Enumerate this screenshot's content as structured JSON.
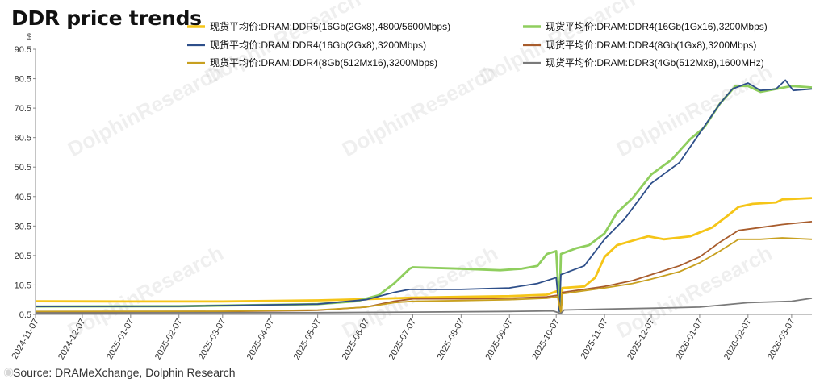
{
  "chart_data": {
    "type": "line",
    "title": "DDR price trends",
    "ylabel": "$",
    "source": "Source: DRAMeXchange,  Dolphin Research",
    "watermark": "DolphinResearch",
    "ylim": [
      0.5,
      90.5
    ],
    "yticks": [
      0.5,
      10.5,
      20.5,
      30.5,
      40.5,
      50.5,
      60.5,
      70.5,
      80.5,
      90.5
    ],
    "xticks": [
      "2024-11-07",
      "2024-12-07",
      "2025-01-07",
      "2025-02-07",
      "2025-03-07",
      "2025-04-07",
      "2025-05-07",
      "2025-06-07",
      "2025-07-07",
      "2025-08-07",
      "2025-09-07",
      "2025-10-07",
      "2025-11-07",
      "2025-12-07",
      "2026-01-07",
      "2026-02-07",
      "2026-03-07"
    ],
    "xlim": [
      "2024-11-07",
      "2026-03-20"
    ],
    "grid": false,
    "legend_position": "top",
    "series": [
      {
        "name": "现货平均价:DRAM:DDR5(16Gb(2Gx8),4800/5600Mbps)",
        "color": "#f5c518",
        "width": 2.8,
        "points": [
          [
            "2024-11-07",
            5.0
          ],
          [
            "2025-01-07",
            4.9
          ],
          [
            "2025-03-07",
            4.9
          ],
          [
            "2025-05-07",
            5.3
          ],
          [
            "2025-06-07",
            5.7
          ],
          [
            "2025-07-07",
            6.2
          ],
          [
            "2025-08-07",
            6.5
          ],
          [
            "2025-09-07",
            6.7
          ],
          [
            "2025-10-01",
            7.2
          ],
          [
            "2025-10-08",
            8.5
          ],
          [
            "2025-10-10",
            1.5
          ],
          [
            "2025-10-11",
            9.5
          ],
          [
            "2025-10-25",
            10.0
          ],
          [
            "2025-11-01",
            13.0
          ],
          [
            "2025-11-07",
            20.0
          ],
          [
            "2025-11-15",
            24.0
          ],
          [
            "2025-11-28",
            26.0
          ],
          [
            "2025-12-05",
            27.0
          ],
          [
            "2025-12-15",
            26.0
          ],
          [
            "2026-01-01",
            27.0
          ],
          [
            "2026-01-15",
            30.0
          ],
          [
            "2026-01-25",
            34.0
          ],
          [
            "2026-02-01",
            37.0
          ],
          [
            "2026-02-10",
            38.0
          ],
          [
            "2026-02-25",
            38.5
          ],
          [
            "2026-03-01",
            39.5
          ],
          [
            "2026-03-20",
            40.0
          ]
        ]
      },
      {
        "name": "现货平均价:DRAM:DDR4(16Gb(1Gx16),3200Mbps)",
        "color": "#8fce5e",
        "width": 2.8,
        "points": [
          [
            "2024-11-07",
            3.2
          ],
          [
            "2025-02-07",
            3.3
          ],
          [
            "2025-05-07",
            4.0
          ],
          [
            "2025-06-01",
            5.0
          ],
          [
            "2025-06-15",
            7.0
          ],
          [
            "2025-06-25",
            11.0
          ],
          [
            "2025-07-05",
            16.0
          ],
          [
            "2025-07-07",
            16.5
          ],
          [
            "2025-08-07",
            16.0
          ],
          [
            "2025-09-01",
            15.5
          ],
          [
            "2025-09-15",
            16.0
          ],
          [
            "2025-09-25",
            17.0
          ],
          [
            "2025-10-01",
            21.0
          ],
          [
            "2025-10-07",
            22.0
          ],
          [
            "2025-10-09",
            2.0
          ],
          [
            "2025-10-10",
            21.0
          ],
          [
            "2025-10-20",
            23.0
          ],
          [
            "2025-10-28",
            24.0
          ],
          [
            "2025-11-07",
            28.0
          ],
          [
            "2025-11-15",
            35.0
          ],
          [
            "2025-11-25",
            40.0
          ],
          [
            "2025-12-07",
            48.0
          ],
          [
            "2025-12-20",
            53.0
          ],
          [
            "2026-01-01",
            60.0
          ],
          [
            "2026-01-10",
            64.0
          ],
          [
            "2026-01-20",
            72.0
          ],
          [
            "2026-01-30",
            78.0
          ],
          [
            "2026-02-07",
            78.0
          ],
          [
            "2026-02-15",
            76.0
          ],
          [
            "2026-02-25",
            77.0
          ],
          [
            "2026-03-07",
            78.0
          ],
          [
            "2026-03-20",
            77.5
          ]
        ]
      },
      {
        "name": "现货平均价:DRAM:DDR4(16Gb(2Gx8),3200Mbps)",
        "color": "#2e4f8a",
        "width": 1.8,
        "points": [
          [
            "2024-11-07",
            3.2
          ],
          [
            "2025-02-07",
            3.3
          ],
          [
            "2025-05-07",
            4.0
          ],
          [
            "2025-06-07",
            5.5
          ],
          [
            "2025-06-25",
            8.0
          ],
          [
            "2025-07-05",
            9.0
          ],
          [
            "2025-08-07",
            9.0
          ],
          [
            "2025-09-07",
            9.5
          ],
          [
            "2025-09-25",
            11.0
          ],
          [
            "2025-10-07",
            13.0
          ],
          [
            "2025-10-09",
            1.5
          ],
          [
            "2025-10-10",
            14.0
          ],
          [
            "2025-10-25",
            17.0
          ],
          [
            "2025-11-07",
            26.0
          ],
          [
            "2025-11-20",
            33.0
          ],
          [
            "2025-12-07",
            45.0
          ],
          [
            "2025-12-25",
            52.0
          ],
          [
            "2026-01-07",
            62.0
          ],
          [
            "2026-01-20",
            72.0
          ],
          [
            "2026-01-28",
            77.0
          ],
          [
            "2026-02-07",
            79.0
          ],
          [
            "2026-02-15",
            76.5
          ],
          [
            "2026-02-25",
            77.0
          ],
          [
            "2026-03-03",
            80.0
          ],
          [
            "2026-03-08",
            76.5
          ],
          [
            "2026-03-20",
            77.0
          ]
        ]
      },
      {
        "name": "现货平均价:DRAM:DDR4(8Gb(1Gx8),3200Mbps)",
        "color": "#a85c2c",
        "width": 1.8,
        "points": [
          [
            "2024-11-07",
            1.4
          ],
          [
            "2025-03-07",
            1.5
          ],
          [
            "2025-05-07",
            1.9
          ],
          [
            "2025-06-07",
            3.0
          ],
          [
            "2025-06-25",
            5.0
          ],
          [
            "2025-07-07",
            5.8
          ],
          [
            "2025-08-07",
            5.8
          ],
          [
            "2025-09-07",
            6.0
          ],
          [
            "2025-10-01",
            6.5
          ],
          [
            "2025-10-08",
            7.0
          ],
          [
            "2025-10-10",
            1.0
          ],
          [
            "2025-10-11",
            8.0
          ],
          [
            "2025-11-07",
            10.0
          ],
          [
            "2025-11-25",
            12.0
          ],
          [
            "2025-12-07",
            14.0
          ],
          [
            "2025-12-25",
            17.0
          ],
          [
            "2026-01-07",
            20.0
          ],
          [
            "2026-01-20",
            25.0
          ],
          [
            "2026-02-01",
            29.0
          ],
          [
            "2026-02-15",
            30.0
          ],
          [
            "2026-03-01",
            31.0
          ],
          [
            "2026-03-20",
            32.0
          ]
        ]
      },
      {
        "name": "现货平均价:DRAM:DDR4(8Gb(512Mx16),3200Mbps)",
        "color": "#c8a020",
        "width": 1.8,
        "points": [
          [
            "2024-11-07",
            1.5
          ],
          [
            "2025-03-07",
            1.6
          ],
          [
            "2025-05-07",
            2.0
          ],
          [
            "2025-06-07",
            3.0
          ],
          [
            "2025-06-25",
            4.5
          ],
          [
            "2025-07-07",
            5.0
          ],
          [
            "2025-08-07",
            5.2
          ],
          [
            "2025-09-07",
            5.5
          ],
          [
            "2025-10-01",
            6.0
          ],
          [
            "2025-10-08",
            6.5
          ],
          [
            "2025-10-10",
            1.0
          ],
          [
            "2025-10-11",
            7.5
          ],
          [
            "2025-11-07",
            9.5
          ],
          [
            "2025-11-25",
            11.0
          ],
          [
            "2025-12-07",
            12.5
          ],
          [
            "2025-12-25",
            15.0
          ],
          [
            "2026-01-07",
            18.0
          ],
          [
            "2026-01-20",
            22.0
          ],
          [
            "2026-02-01",
            26.0
          ],
          [
            "2026-02-15",
            26.0
          ],
          [
            "2026-03-01",
            26.5
          ],
          [
            "2026-03-20",
            26.0
          ]
        ]
      },
      {
        "name": "现货平均价:DRAM:DDR3(4Gb(512Mx8),1600MHz)",
        "color": "#7a7a7a",
        "width": 1.8,
        "points": [
          [
            "2024-11-07",
            1.0
          ],
          [
            "2025-05-07",
            1.1
          ],
          [
            "2025-07-07",
            1.3
          ],
          [
            "2025-09-07",
            1.5
          ],
          [
            "2025-10-05",
            1.7
          ],
          [
            "2025-10-10",
            0.8
          ],
          [
            "2025-10-12",
            2.0
          ],
          [
            "2025-11-07",
            2.3
          ],
          [
            "2025-12-07",
            2.6
          ],
          [
            "2026-01-07",
            3.0
          ],
          [
            "2026-02-07",
            4.5
          ],
          [
            "2026-03-07",
            5.0
          ],
          [
            "2026-03-20",
            6.0
          ]
        ]
      }
    ]
  }
}
